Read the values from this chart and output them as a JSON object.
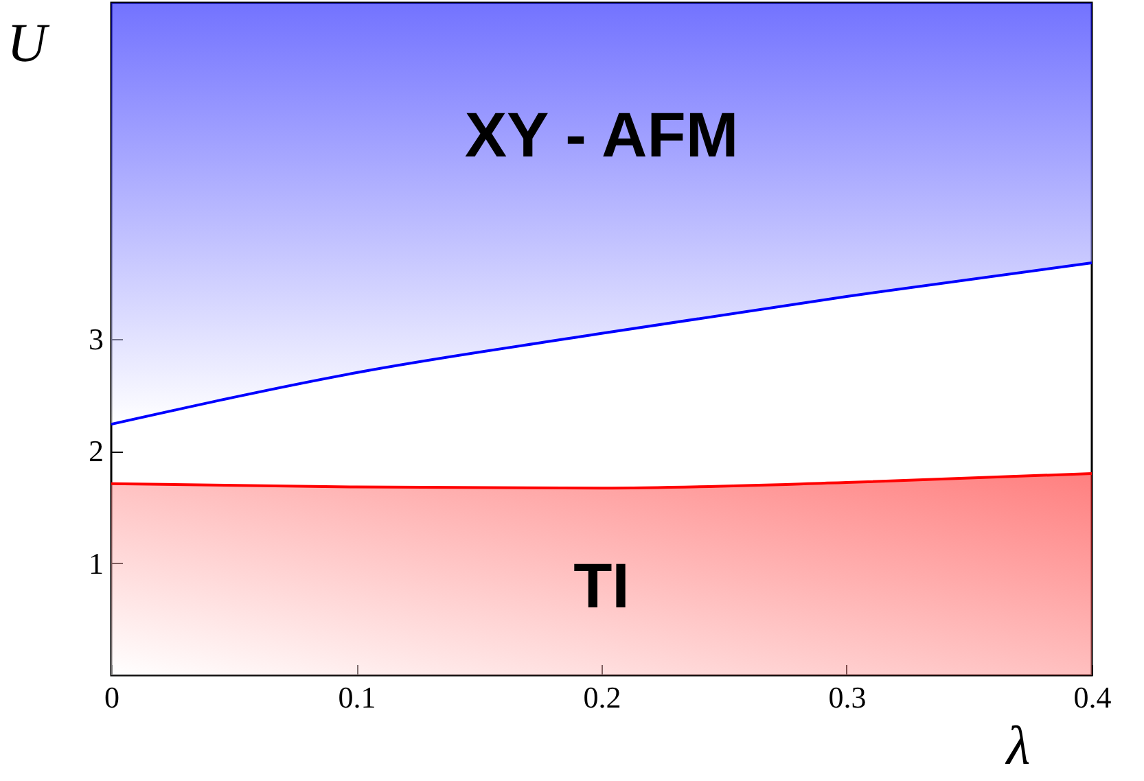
{
  "chart_data": {
    "type": "line",
    "xlabel": "λ",
    "ylabel": "U",
    "x": [
      0,
      0.1,
      0.2,
      0.3,
      0.4
    ],
    "series": [
      {
        "color": "#0000ff",
        "values": [
          2.24,
          2.7,
          3.05,
          3.38,
          3.68
        ],
        "lower": [
          2.24,
          2.7,
          3.05,
          3.38,
          3.68
        ],
        "upper": [
          6,
          6,
          6,
          6,
          6
        ]
      },
      {
        "type": "area",
        "color": "#ff0000",
        "values": [
          1.71,
          1.68,
          1.67,
          1.72,
          1.8
        ]
      }
    ],
    "xlim": [
      0,
      0.4
    ],
    "xticks": [
      0,
      0.1,
      0.2,
      0.3,
      0.4
    ],
    "ylim": [
      0,
      6
    ],
    "yticks": [
      1,
      2,
      3
    ],
    "annotations": [
      "XY - AFM",
      "TI"
    ],
    "grid": false
  }
}
